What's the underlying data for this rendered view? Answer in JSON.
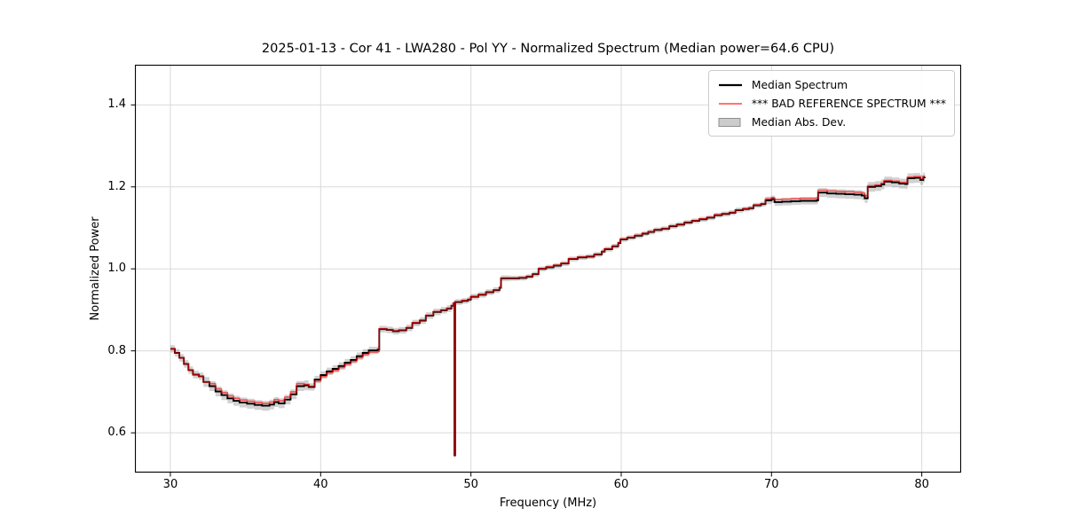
{
  "chart_data": {
    "type": "line",
    "title": "2025-01-13 - Cor 41 - LWA280 - Pol YY - Normalized Spectrum (Median power=64.6 CPU)",
    "xlabel": "Frequency (MHz)",
    "ylabel": "Normalized Power",
    "xlim": [
      27.64,
      82.62
    ],
    "ylim": [
      0.503,
      1.498
    ],
    "xticks": [
      30,
      40,
      50,
      60,
      70,
      80
    ],
    "yticks": [
      0.6,
      0.8,
      1.0,
      1.2,
      1.4
    ],
    "grid": true,
    "grid_color": "#d9d9d9",
    "spine_color": "#000000",
    "legend_position": "upper right",
    "legend": [
      {
        "label": "Median Spectrum",
        "type": "line",
        "color": "#000000",
        "opacity": 1,
        "width": 2.2
      },
      {
        "label": "*** BAD REFERENCE SPECTRUM ***",
        "type": "line",
        "color": "#ff0000",
        "opacity": 0.62,
        "width": 1.8
      },
      {
        "label": "Median Abs. Dev.",
        "type": "patch",
        "fill": "#cccccc",
        "edge": "#8f8f8f"
      }
    ],
    "series": [
      {
        "name": "Median Spectrum",
        "color": "#000000",
        "opacity": 1,
        "width": 1.9,
        "step": true,
        "points": [
          [
            30.0,
            0.805
          ],
          [
            30.3,
            0.795
          ],
          [
            30.6,
            0.783
          ],
          [
            30.9,
            0.768
          ],
          [
            31.2,
            0.753
          ],
          [
            31.5,
            0.742
          ],
          [
            31.9,
            0.738
          ],
          [
            32.2,
            0.724
          ],
          [
            32.6,
            0.714
          ],
          [
            33.0,
            0.701
          ],
          [
            33.4,
            0.692
          ],
          [
            33.8,
            0.684
          ],
          [
            34.2,
            0.678
          ],
          [
            34.6,
            0.674
          ],
          [
            35.1,
            0.671
          ],
          [
            35.6,
            0.668
          ],
          [
            36.1,
            0.666
          ],
          [
            36.6,
            0.669
          ],
          [
            36.9,
            0.675
          ],
          [
            37.2,
            0.672
          ],
          [
            37.6,
            0.681
          ],
          [
            38.0,
            0.694
          ],
          [
            38.4,
            0.714
          ],
          [
            38.9,
            0.716
          ],
          [
            39.2,
            0.712
          ],
          [
            39.6,
            0.73
          ],
          [
            40.0,
            0.741
          ],
          [
            40.4,
            0.75
          ],
          [
            40.8,
            0.756
          ],
          [
            41.2,
            0.763
          ],
          [
            41.6,
            0.771
          ],
          [
            42.0,
            0.778
          ],
          [
            42.4,
            0.787
          ],
          [
            42.8,
            0.795
          ],
          [
            43.2,
            0.801
          ],
          [
            43.8,
            0.803
          ],
          [
            43.9,
            0.853
          ],
          [
            44.4,
            0.851
          ],
          [
            44.8,
            0.848
          ],
          [
            45.2,
            0.85
          ],
          [
            45.7,
            0.856
          ],
          [
            46.1,
            0.868
          ],
          [
            46.6,
            0.874
          ],
          [
            47.0,
            0.886
          ],
          [
            47.5,
            0.895
          ],
          [
            48.0,
            0.899
          ],
          [
            48.4,
            0.903
          ],
          [
            48.7,
            0.91
          ],
          [
            48.85,
            0.916
          ],
          [
            48.9,
            0.545
          ],
          [
            48.95,
            0.919
          ],
          [
            49.4,
            0.922
          ],
          [
            49.8,
            0.925
          ],
          [
            50.0,
            0.932
          ],
          [
            50.5,
            0.937
          ],
          [
            51.0,
            0.943
          ],
          [
            51.5,
            0.948
          ],
          [
            51.9,
            0.954
          ],
          [
            52.0,
            0.977
          ],
          [
            52.6,
            0.977
          ],
          [
            53.2,
            0.978
          ],
          [
            53.7,
            0.981
          ],
          [
            54.1,
            0.987
          ],
          [
            54.5,
            1.0
          ],
          [
            55.0,
            1.004
          ],
          [
            55.5,
            1.008
          ],
          [
            56.0,
            1.013
          ],
          [
            56.5,
            1.024
          ],
          [
            57.1,
            1.028
          ],
          [
            57.7,
            1.03
          ],
          [
            58.2,
            1.035
          ],
          [
            58.7,
            1.042
          ],
          [
            58.9,
            1.048
          ],
          [
            59.4,
            1.055
          ],
          [
            59.8,
            1.063
          ],
          [
            59.95,
            1.072
          ],
          [
            60.4,
            1.076
          ],
          [
            60.9,
            1.081
          ],
          [
            61.4,
            1.086
          ],
          [
            61.8,
            1.09
          ],
          [
            62.2,
            1.095
          ],
          [
            62.7,
            1.098
          ],
          [
            63.2,
            1.104
          ],
          [
            63.7,
            1.108
          ],
          [
            64.2,
            1.113
          ],
          [
            64.7,
            1.117
          ],
          [
            65.2,
            1.121
          ],
          [
            65.7,
            1.125
          ],
          [
            66.2,
            1.131
          ],
          [
            66.7,
            1.134
          ],
          [
            67.2,
            1.137
          ],
          [
            67.6,
            1.143
          ],
          [
            68.1,
            1.146
          ],
          [
            68.5,
            1.148
          ],
          [
            68.8,
            1.155
          ],
          [
            69.3,
            1.158
          ],
          [
            69.6,
            1.167
          ],
          [
            70.0,
            1.17
          ],
          [
            70.2,
            1.163
          ],
          [
            70.7,
            1.164
          ],
          [
            71.3,
            1.165
          ],
          [
            71.9,
            1.166
          ],
          [
            72.5,
            1.166
          ],
          [
            73.0,
            1.167
          ],
          [
            73.1,
            1.186
          ],
          [
            73.7,
            1.184
          ],
          [
            74.3,
            1.183
          ],
          [
            74.9,
            1.182
          ],
          [
            75.5,
            1.181
          ],
          [
            76.0,
            1.179
          ],
          [
            76.2,
            1.172
          ],
          [
            76.4,
            1.2
          ],
          [
            76.9,
            1.202
          ],
          [
            77.3,
            1.206
          ],
          [
            77.5,
            1.213
          ],
          [
            78.0,
            1.211
          ],
          [
            78.5,
            1.208
          ],
          [
            78.9,
            1.207
          ],
          [
            79.05,
            1.221
          ],
          [
            79.5,
            1.222
          ],
          [
            79.9,
            1.217
          ],
          [
            80.1,
            1.223
          ],
          [
            80.2,
            1.224
          ]
        ]
      },
      {
        "name": "*** BAD REFERENCE SPECTRUM ***",
        "color": "#ff0000",
        "opacity": 0.62,
        "width": 1.6,
        "step": true,
        "offsets_from_median": [
          {
            "from": 30.0,
            "to": 32.2,
            "delta": 0
          },
          {
            "from": 32.2,
            "to": 38.6,
            "delta": 0.006
          },
          {
            "from": 38.6,
            "to": 39.4,
            "delta": 0.002
          },
          {
            "from": 39.4,
            "to": 43.85,
            "delta": -0.004
          },
          {
            "from": 43.85,
            "to": 48.88,
            "delta": 0.001
          },
          {
            "from": 48.88,
            "to": 48.93,
            "delta": 0
          },
          {
            "from": 48.93,
            "to": 69.4,
            "delta": 0.001
          },
          {
            "from": 69.4,
            "to": 70.15,
            "delta": 0.004
          },
          {
            "from": 70.15,
            "to": 76.35,
            "delta": 0.006
          },
          {
            "from": 76.35,
            "to": 80.2,
            "delta": 0.003
          }
        ]
      }
    ],
    "band": {
      "name": "Median Abs. Dev.",
      "fill": "#999999",
      "opacity": 0.45,
      "halfwidth_segments": [
        {
          "from": 30.0,
          "to": 32.0,
          "hw": 0.009
        },
        {
          "from": 32.0,
          "to": 39.0,
          "hw": 0.012
        },
        {
          "from": 39.0,
          "to": 43.85,
          "hw": 0.009
        },
        {
          "from": 43.85,
          "to": 48.88,
          "hw": 0.008
        },
        {
          "from": 48.88,
          "to": 48.93,
          "hw": 0.006
        },
        {
          "from": 48.93,
          "to": 52.0,
          "hw": 0.007
        },
        {
          "from": 52.0,
          "to": 58.0,
          "hw": 0.006
        },
        {
          "from": 58.0,
          "to": 69.4,
          "hw": 0.006
        },
        {
          "from": 69.4,
          "to": 73.05,
          "hw": 0.009
        },
        {
          "from": 73.05,
          "to": 76.35,
          "hw": 0.011
        },
        {
          "from": 76.35,
          "to": 80.2,
          "hw": 0.012
        }
      ]
    }
  }
}
